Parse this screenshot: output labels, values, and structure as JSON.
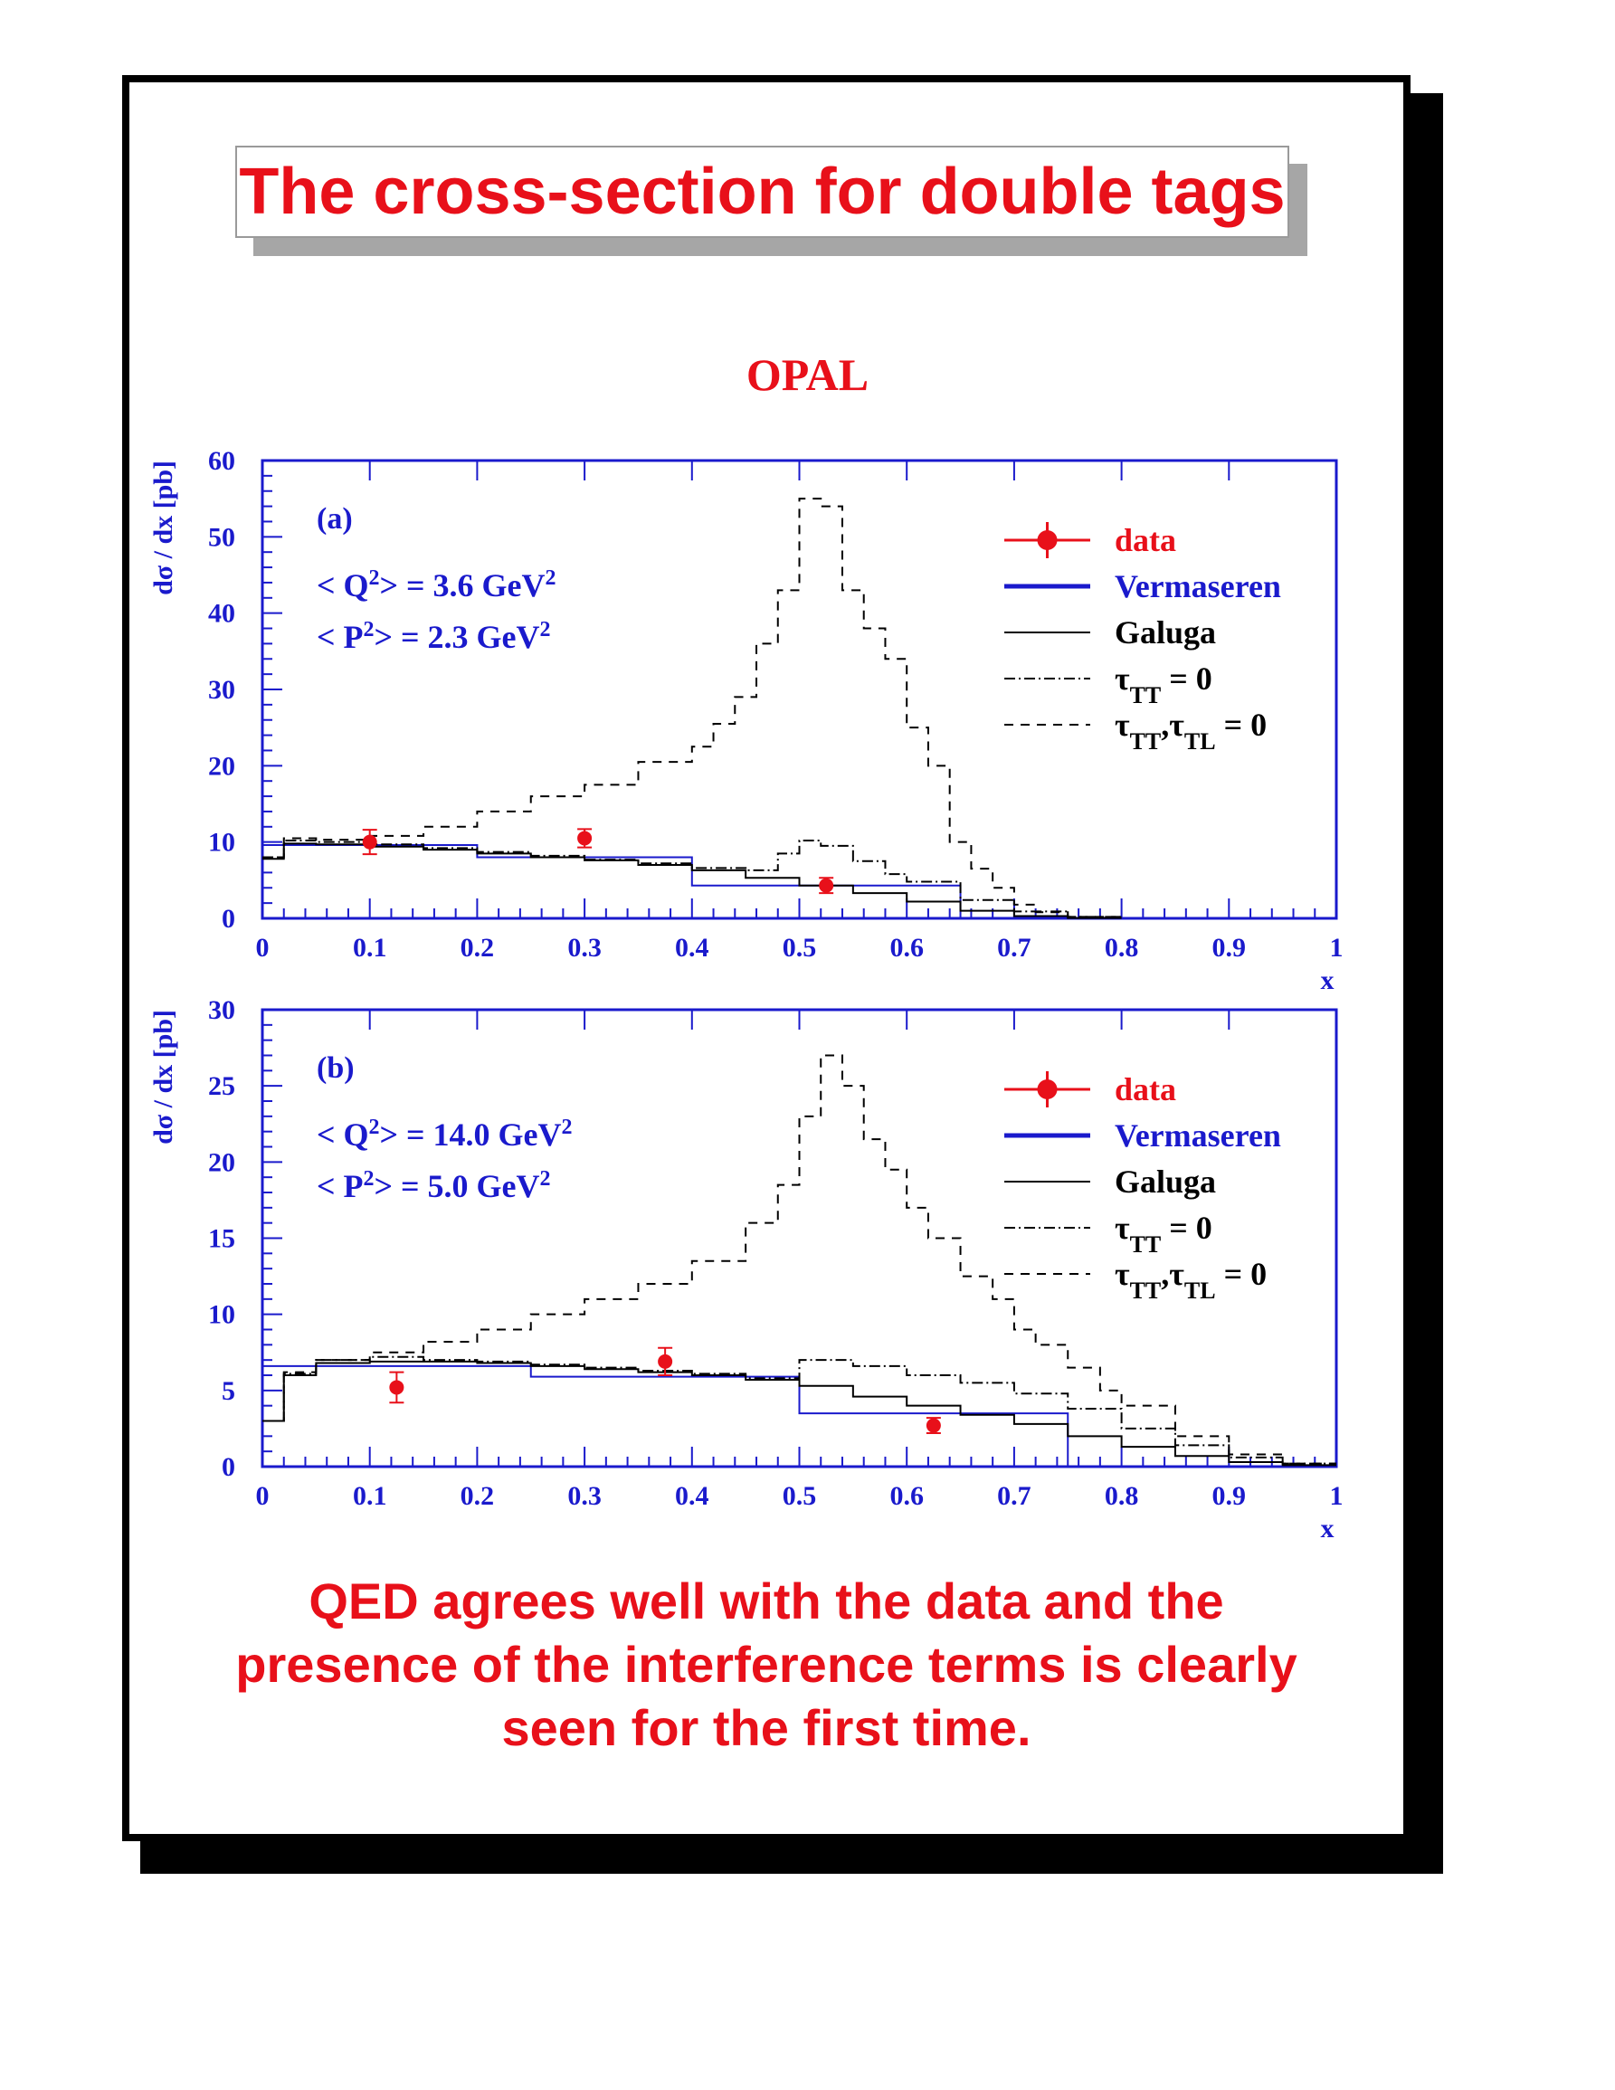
{
  "title": "The cross-section for double tags",
  "experiment_label": "OPAL",
  "conclusion": [
    "QED agrees well with the data and the",
    "presence of the interference terms is clearly",
    "seen for the first time."
  ],
  "colors": {
    "title_red": "#e8101a",
    "axis_blue": "#1a1acc",
    "data_red": "#e8101a",
    "curve_black": "#000000"
  },
  "chart_data": [
    {
      "type": "line",
      "panel_label": "(a)",
      "annotations": [
        "< Q²> = 3.6 GeV²",
        "< P²> = 2.3 GeV²"
      ],
      "ylabel": "dσ / dx [pb]",
      "xlabel": "x",
      "xlim": [
        0,
        1
      ],
      "ylim": [
        0,
        60
      ],
      "x_ticks": [
        "0",
        "0.1",
        "0.2",
        "0.3",
        "0.4",
        "0.5",
        "0.6",
        "0.7",
        "0.8",
        "0.9",
        "1"
      ],
      "y_ticks": [
        "0",
        "10",
        "20",
        "30",
        "40",
        "50",
        "60"
      ],
      "legend_position": "top-right",
      "legend": [
        "data",
        "Vermaseren",
        "Galuga",
        "τTT = 0",
        "τTT,τTL = 0"
      ],
      "data_points": [
        {
          "x": 0.1,
          "y": 10.0,
          "err": 1.6
        },
        {
          "x": 0.3,
          "y": 10.5,
          "err": 1.2
        },
        {
          "x": 0.525,
          "y": 4.3,
          "err": 1.0
        }
      ],
      "series": [
        {
          "name": "Vermaseren",
          "style": "blue-hist",
          "edges": [
            0,
            0.2,
            0.4,
            0.65,
            1.0
          ],
          "values": [
            9.6,
            8.0,
            4.3,
            0
          ]
        },
        {
          "name": "Galuga",
          "style": "solid",
          "x": [
            0,
            0.02,
            0.05,
            0.1,
            0.15,
            0.2,
            0.25,
            0.3,
            0.35,
            0.4,
            0.45,
            0.5,
            0.55,
            0.6,
            0.65,
            0.7,
            0.75,
            0.8
          ],
          "y": [
            7.8,
            9.8,
            9.7,
            9.4,
            9.0,
            8.5,
            8.0,
            7.6,
            7.0,
            6.3,
            5.3,
            4.3,
            3.3,
            2.2,
            1.0,
            0.3,
            0.05,
            0
          ]
        },
        {
          "name": "τTT = 0",
          "style": "dashdot",
          "x": [
            0,
            0.02,
            0.05,
            0.1,
            0.15,
            0.2,
            0.25,
            0.3,
            0.35,
            0.4,
            0.45,
            0.48,
            0.5,
            0.52,
            0.55,
            0.58,
            0.6,
            0.65,
            0.7,
            0.75,
            0.8
          ],
          "y": [
            8.0,
            10.2,
            10.0,
            9.7,
            9.2,
            8.7,
            8.2,
            7.7,
            7.2,
            6.6,
            6.3,
            8.5,
            10.2,
            9.5,
            7.5,
            5.8,
            4.8,
            2.4,
            0.9,
            0.2,
            0
          ]
        },
        {
          "name": "τTT,τTL = 0",
          "style": "dashed",
          "x": [
            0,
            0.02,
            0.05,
            0.1,
            0.15,
            0.2,
            0.25,
            0.3,
            0.35,
            0.4,
            0.42,
            0.44,
            0.46,
            0.48,
            0.5,
            0.52,
            0.54,
            0.56,
            0.58,
            0.6,
            0.62,
            0.64,
            0.66,
            0.68,
            0.7,
            0.72,
            0.75,
            0.8
          ],
          "y": [
            8.0,
            10.5,
            10.3,
            10.8,
            12.0,
            14.0,
            16.0,
            17.5,
            20.5,
            22.5,
            25.5,
            29.0,
            36.0,
            43.0,
            55.0,
            54.0,
            43.0,
            38.0,
            34.0,
            25.0,
            20.0,
            10.0,
            6.5,
            4.0,
            1.8,
            0.8,
            0.2,
            0
          ]
        }
      ]
    },
    {
      "type": "line",
      "panel_label": "(b)",
      "annotations": [
        "< Q²> = 14.0 GeV²",
        "< P²> =  5.0 GeV²"
      ],
      "ylabel": "dσ / dx [pb]",
      "xlabel": "x",
      "xlim": [
        0,
        1
      ],
      "ylim": [
        0,
        30
      ],
      "x_ticks": [
        "0",
        "0.1",
        "0.2",
        "0.3",
        "0.4",
        "0.5",
        "0.6",
        "0.7",
        "0.8",
        "0.9",
        "1"
      ],
      "y_ticks": [
        "0",
        "5",
        "10",
        "15",
        "20",
        "25",
        "30"
      ],
      "legend_position": "top-right",
      "legend": [
        "data",
        "Vermaseren",
        "Galuga",
        "τTT = 0",
        "τTT,τTL = 0"
      ],
      "data_points": [
        {
          "x": 0.125,
          "y": 5.2,
          "err": 1.0
        },
        {
          "x": 0.375,
          "y": 6.9,
          "err": 0.9
        },
        {
          "x": 0.625,
          "y": 2.7,
          "err": 0.5
        }
      ],
      "series": [
        {
          "name": "Vermaseren",
          "style": "blue-hist",
          "edges": [
            0,
            0.25,
            0.5,
            0.75,
            1.0
          ],
          "values": [
            6.6,
            5.9,
            3.5,
            0
          ]
        },
        {
          "name": "Galuga",
          "style": "solid",
          "x": [
            0,
            0.02,
            0.05,
            0.1,
            0.15,
            0.2,
            0.25,
            0.3,
            0.35,
            0.4,
            0.45,
            0.5,
            0.55,
            0.6,
            0.65,
            0.7,
            0.75,
            0.8,
            0.85,
            0.9,
            0.95,
            1.0
          ],
          "y": [
            3.0,
            6.0,
            6.8,
            6.9,
            6.9,
            6.8,
            6.6,
            6.4,
            6.2,
            6.0,
            5.7,
            5.3,
            4.6,
            4.0,
            3.4,
            2.8,
            2.0,
            1.3,
            0.7,
            0.3,
            0.1,
            0
          ]
        },
        {
          "name": "τTT = 0",
          "style": "dashdot",
          "x": [
            0,
            0.02,
            0.05,
            0.1,
            0.15,
            0.2,
            0.25,
            0.3,
            0.35,
            0.4,
            0.45,
            0.5,
            0.55,
            0.6,
            0.65,
            0.7,
            0.75,
            0.8,
            0.85,
            0.9,
            0.95,
            1.0
          ],
          "y": [
            3.0,
            6.1,
            7.0,
            7.2,
            7.0,
            6.9,
            6.7,
            6.5,
            6.3,
            6.1,
            5.8,
            7.0,
            6.6,
            6.0,
            5.5,
            4.8,
            3.8,
            2.5,
            1.4,
            0.6,
            0.2,
            0
          ]
        },
        {
          "name": "τTT,τTL = 0",
          "style": "dashed",
          "x": [
            0,
            0.02,
            0.05,
            0.1,
            0.15,
            0.2,
            0.25,
            0.3,
            0.35,
            0.4,
            0.45,
            0.48,
            0.5,
            0.52,
            0.54,
            0.56,
            0.58,
            0.6,
            0.62,
            0.65,
            0.68,
            0.7,
            0.72,
            0.75,
            0.78,
            0.8,
            0.85,
            0.9,
            0.95,
            1.0
          ],
          "y": [
            3.0,
            6.2,
            7.0,
            7.5,
            8.2,
            9.0,
            10.0,
            11.0,
            12.0,
            13.5,
            16.0,
            18.5,
            23.0,
            27.0,
            25.0,
            21.5,
            19.5,
            17.0,
            15.0,
            12.5,
            11.0,
            9.0,
            8.0,
            6.5,
            5.0,
            4.0,
            2.0,
            0.8,
            0.2,
            0
          ]
        }
      ]
    }
  ]
}
